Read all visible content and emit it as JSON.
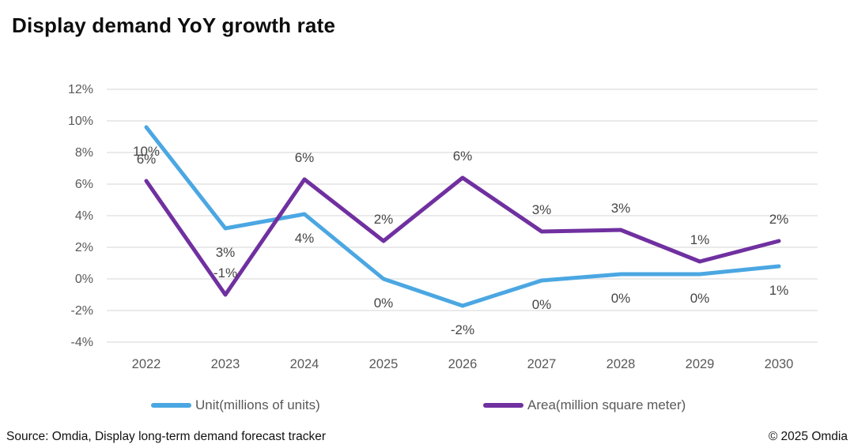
{
  "title": "Display demand YoY growth rate",
  "source": "Source: Omdia, Display long-term demand forecast tracker",
  "copyright": "© 2025 Omdia",
  "chart_data": {
    "type": "line",
    "title": "Display demand YoY growth rate",
    "categories": [
      "2022",
      "2023",
      "2024",
      "2025",
      "2026",
      "2027",
      "2028",
      "2029",
      "2030"
    ],
    "series": [
      {
        "name": "Unit(millions of units)",
        "color": "#4BA7E2",
        "values": [
          9.6,
          3.2,
          4.1,
          0,
          -1.7,
          -0.1,
          0.3,
          0.3,
          0.8
        ],
        "point_labels": [
          "10%",
          "3%",
          "4%",
          "0%",
          "-2%",
          "0%",
          "0%",
          "0%",
          "1%"
        ],
        "label_position": "below"
      },
      {
        "name": "Area(million square meter)",
        "color": "#7030A0",
        "values": [
          6.2,
          -1,
          6.3,
          2.4,
          6.4,
          3,
          3.1,
          1.1,
          2.4
        ],
        "point_labels": [
          "6%",
          "-1%",
          "6%",
          "2%",
          "6%",
          "3%",
          "3%",
          "1%",
          "2%"
        ],
        "label_position": "above"
      }
    ],
    "xlabel": "",
    "ylabel": "",
    "y_axis": {
      "min": -4,
      "max": 12,
      "step": 2,
      "tick_labels": [
        "12%",
        "10%",
        "8%",
        "6%",
        "4%",
        "2%",
        "0%",
        "-2%",
        "-4%"
      ]
    },
    "grid": true,
    "legend_position": "bottom",
    "colors": {
      "gridline": "#E4E4E4",
      "axis_text": "#595959",
      "data_label_text": "#454545"
    }
  },
  "legend": {
    "items": [
      {
        "label": "Unit(millions of units)"
      },
      {
        "label": "Area(million square meter)"
      }
    ]
  }
}
